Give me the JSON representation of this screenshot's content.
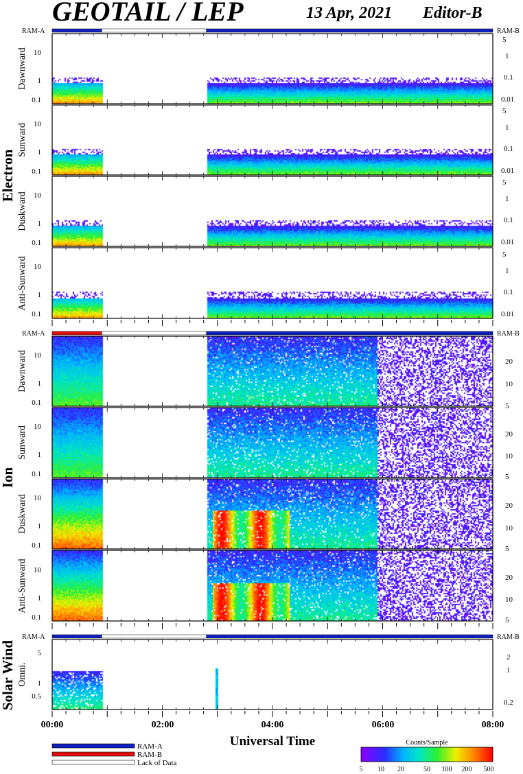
{
  "header": {
    "title": "GEOTAIL / LEP",
    "date": "13 Apr, 2021",
    "editor": "Editor-B"
  },
  "chart_data": {
    "type": "heatmap",
    "xlabel": "Universal Time",
    "x_ticks": [
      "00:00",
      "02:00",
      "04:00",
      "06:00",
      "08:00"
    ],
    "x_range_hours": [
      0,
      8
    ],
    "data_gap_hours": [
      0.9,
      2.8
    ],
    "groups": [
      {
        "name": "Electron",
        "ram_left": "RAM-A",
        "ram_right": "RAM-B",
        "ram_bar": [
          {
            "from": 0,
            "to": 0.9,
            "state": "RAM-A"
          },
          {
            "from": 0.9,
            "to": 2.8,
            "state": "Lack of Data"
          },
          {
            "from": 2.8,
            "to": 8,
            "state": "RAM-A"
          }
        ],
        "left_ticks": [
          "10",
          "1",
          "0.1"
        ],
        "right_ticks": [
          "5",
          "1",
          "0.1",
          "0.01"
        ],
        "panels": [
          "Dawnward",
          "Sunward",
          "Duskward",
          "Anti-Sunward"
        ]
      },
      {
        "name": "Ion",
        "ram_left": "RAM-A",
        "ram_right": "RAM-B",
        "ram_bar": [
          {
            "from": 0,
            "to": 0.9,
            "state": "RAM-B"
          },
          {
            "from": 0.9,
            "to": 2.8,
            "state": "Lack of Data"
          },
          {
            "from": 2.8,
            "to": 8,
            "state": "RAM-A"
          }
        ],
        "left_ticks": [
          "10",
          "1",
          "0.1"
        ],
        "right_ticks": [
          "20",
          "10",
          "5"
        ],
        "panels": [
          "Dawnward",
          "Sunward",
          "Duskward",
          "Anti-Sunward"
        ]
      },
      {
        "name": "Solar Wind",
        "ram_left": "RAM-A",
        "ram_right": "RAM-B",
        "ram_bar": [
          {
            "from": 0,
            "to": 0.9,
            "state": "RAM-A"
          },
          {
            "from": 0.9,
            "to": 2.8,
            "state": "Lack of Data"
          },
          {
            "from": 2.8,
            "to": 8,
            "state": "RAM-A"
          }
        ],
        "left_ticks": [
          "5",
          "1",
          "0.5"
        ],
        "right_ticks": [
          "2",
          "1",
          "0.2"
        ],
        "panels": [
          "Omni."
        ]
      }
    ],
    "legend": {
      "items": [
        {
          "label": "RAM-A",
          "color": "#1020c0"
        },
        {
          "label": "RAM-B",
          "color": "#e01010"
        },
        {
          "label": "Lack of Data",
          "color": "#ffffff"
        }
      ]
    },
    "colorbar": {
      "title": "Counts/Sample",
      "ticks": [
        "5",
        "10",
        "20",
        "50",
        "100",
        "200",
        "500"
      ],
      "range": [
        5,
        500
      ],
      "scale": "log"
    }
  }
}
